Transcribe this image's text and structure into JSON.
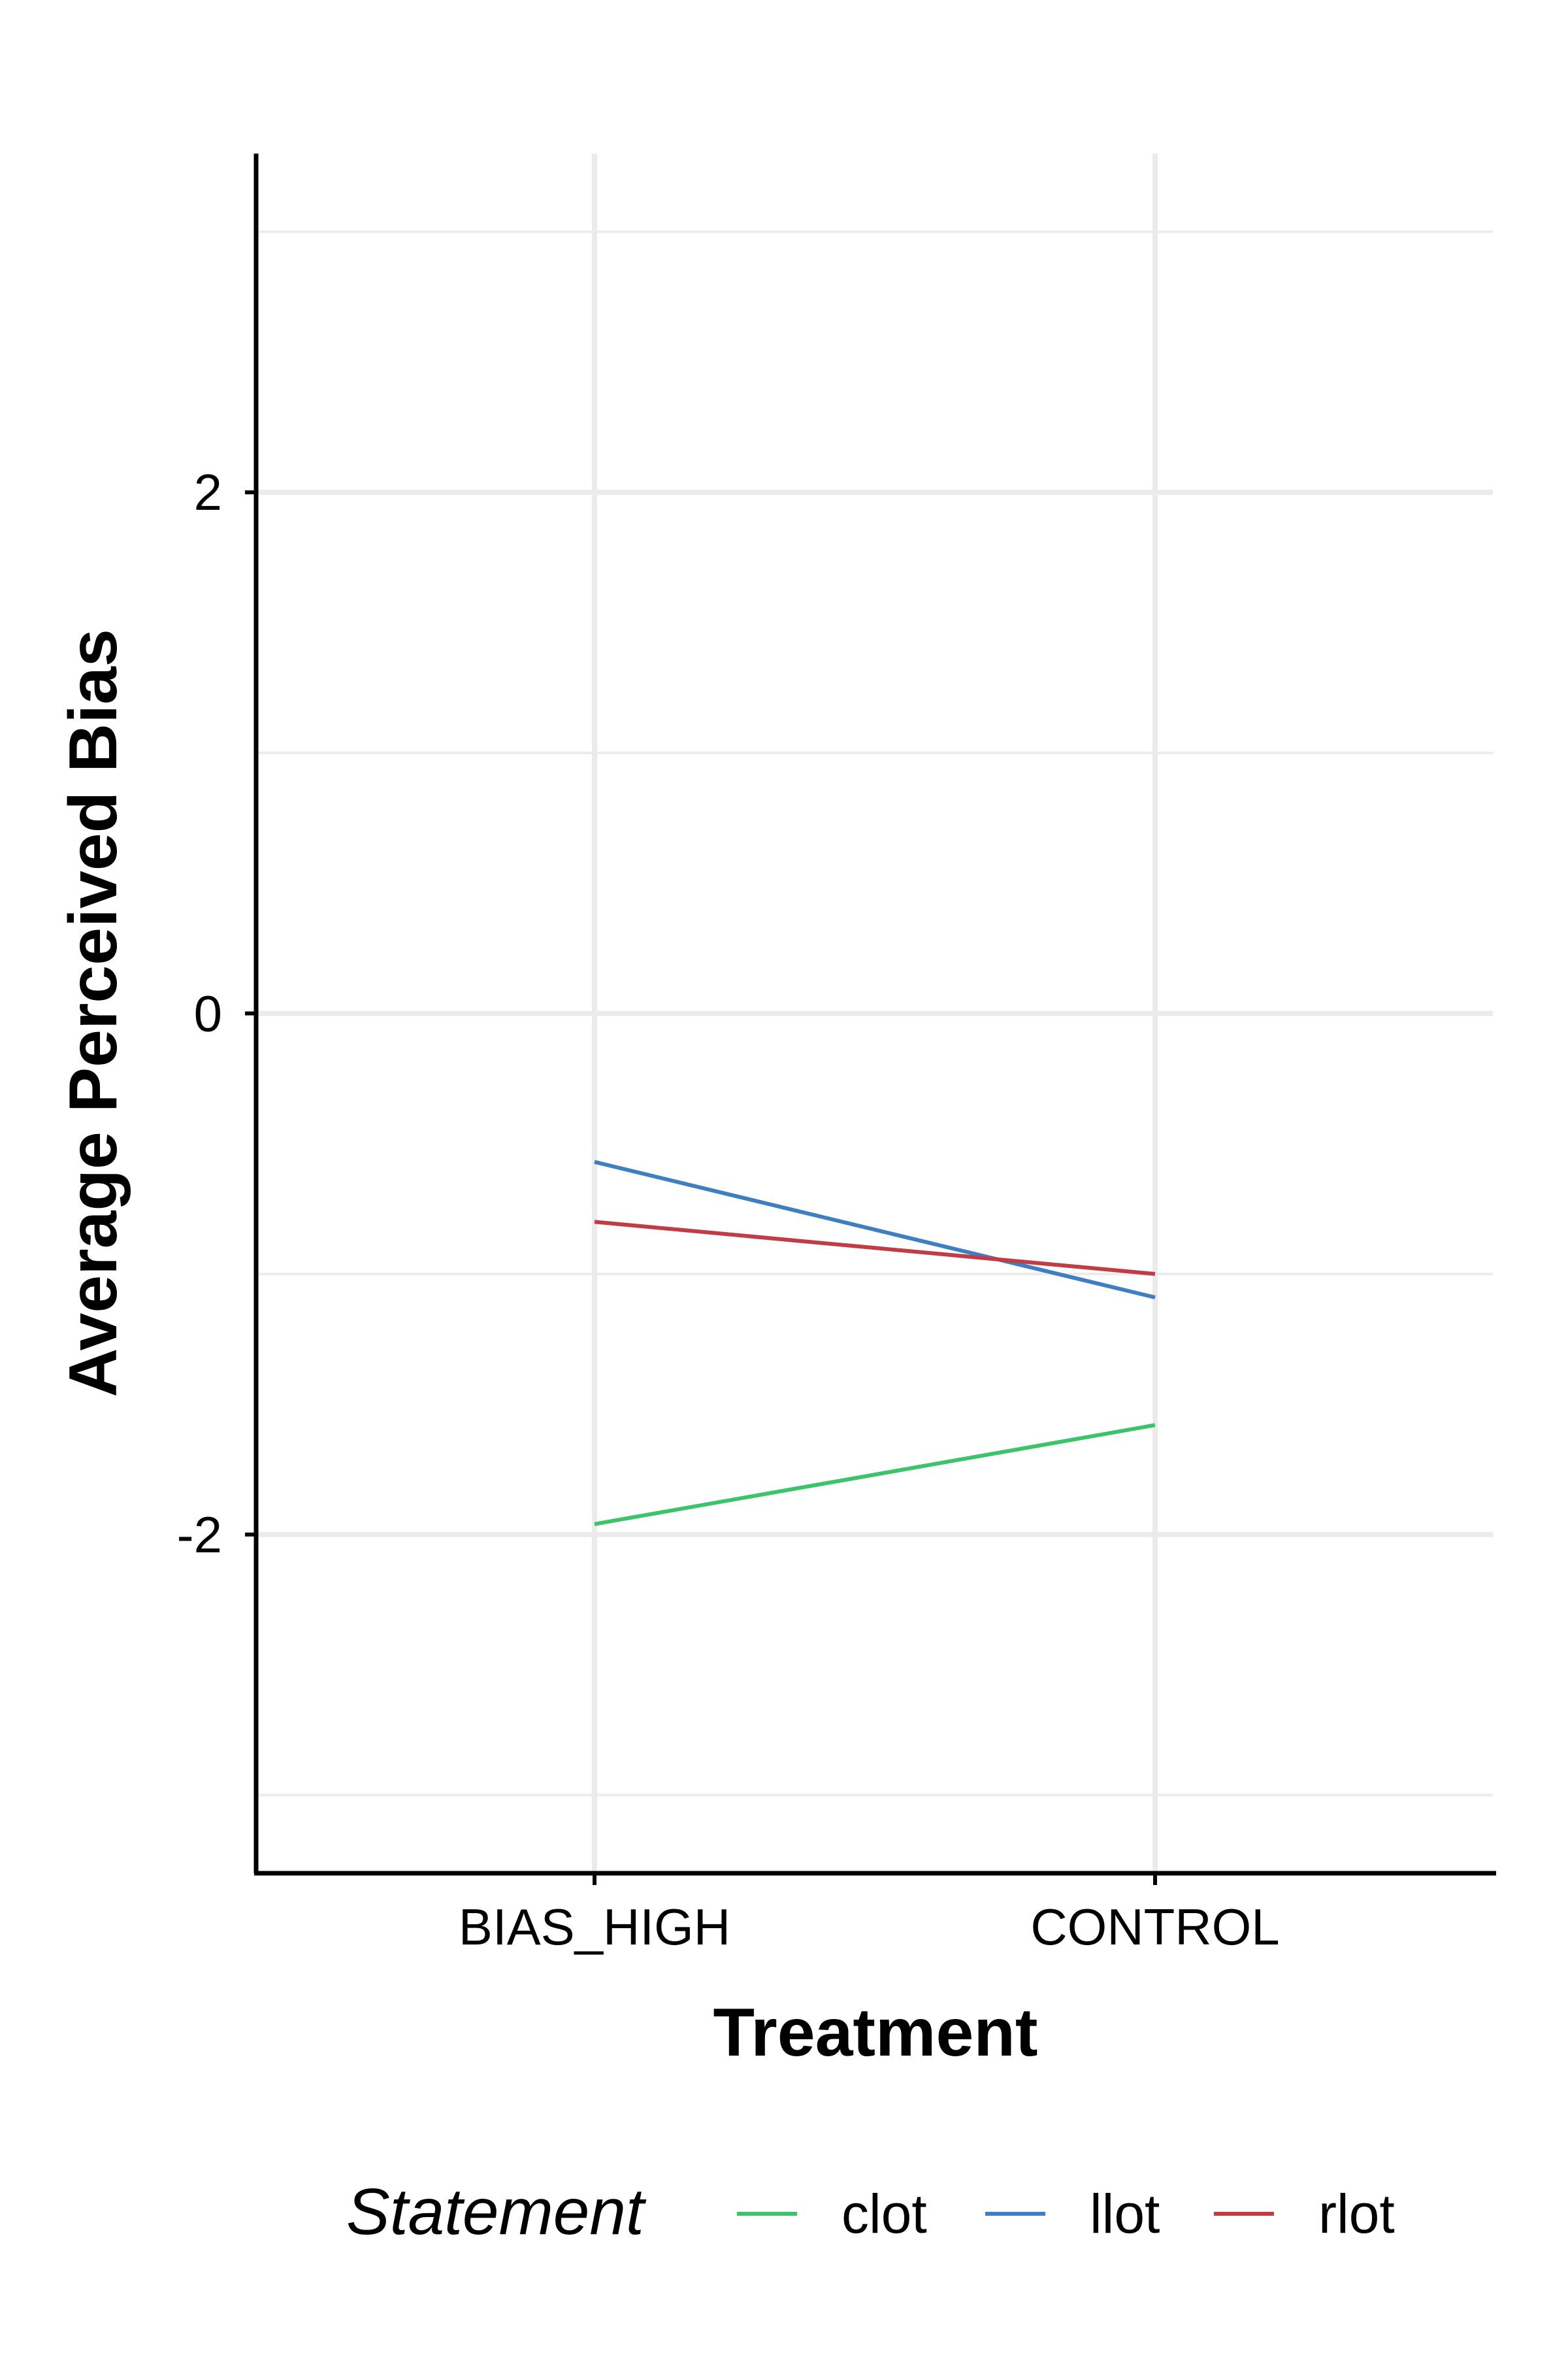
{
  "chart_data": {
    "type": "line",
    "categories": [
      "BIAS_HIGH",
      "CONTROL"
    ],
    "series": [
      {
        "name": "clot",
        "values": [
          -1.96,
          -1.58
        ],
        "color": "#3cc36b"
      },
      {
        "name": "llot",
        "values": [
          -0.57,
          -1.09
        ],
        "color": "#3f7ec0"
      },
      {
        "name": "rlot",
        "values": [
          -0.8,
          -1.0
        ],
        "color": "#c03d46"
      }
    ],
    "title": "",
    "xlabel": "Treatment",
    "ylabel": "Average Perceived Bias",
    "ylim": [
      -3.3,
      3.3
    ],
    "yticks": [
      -2,
      0,
      2
    ],
    "ytick_labels": [
      "-2",
      "0",
      "2"
    ],
    "grid": true,
    "legend": {
      "title": "Statement",
      "position": "bottom"
    }
  }
}
